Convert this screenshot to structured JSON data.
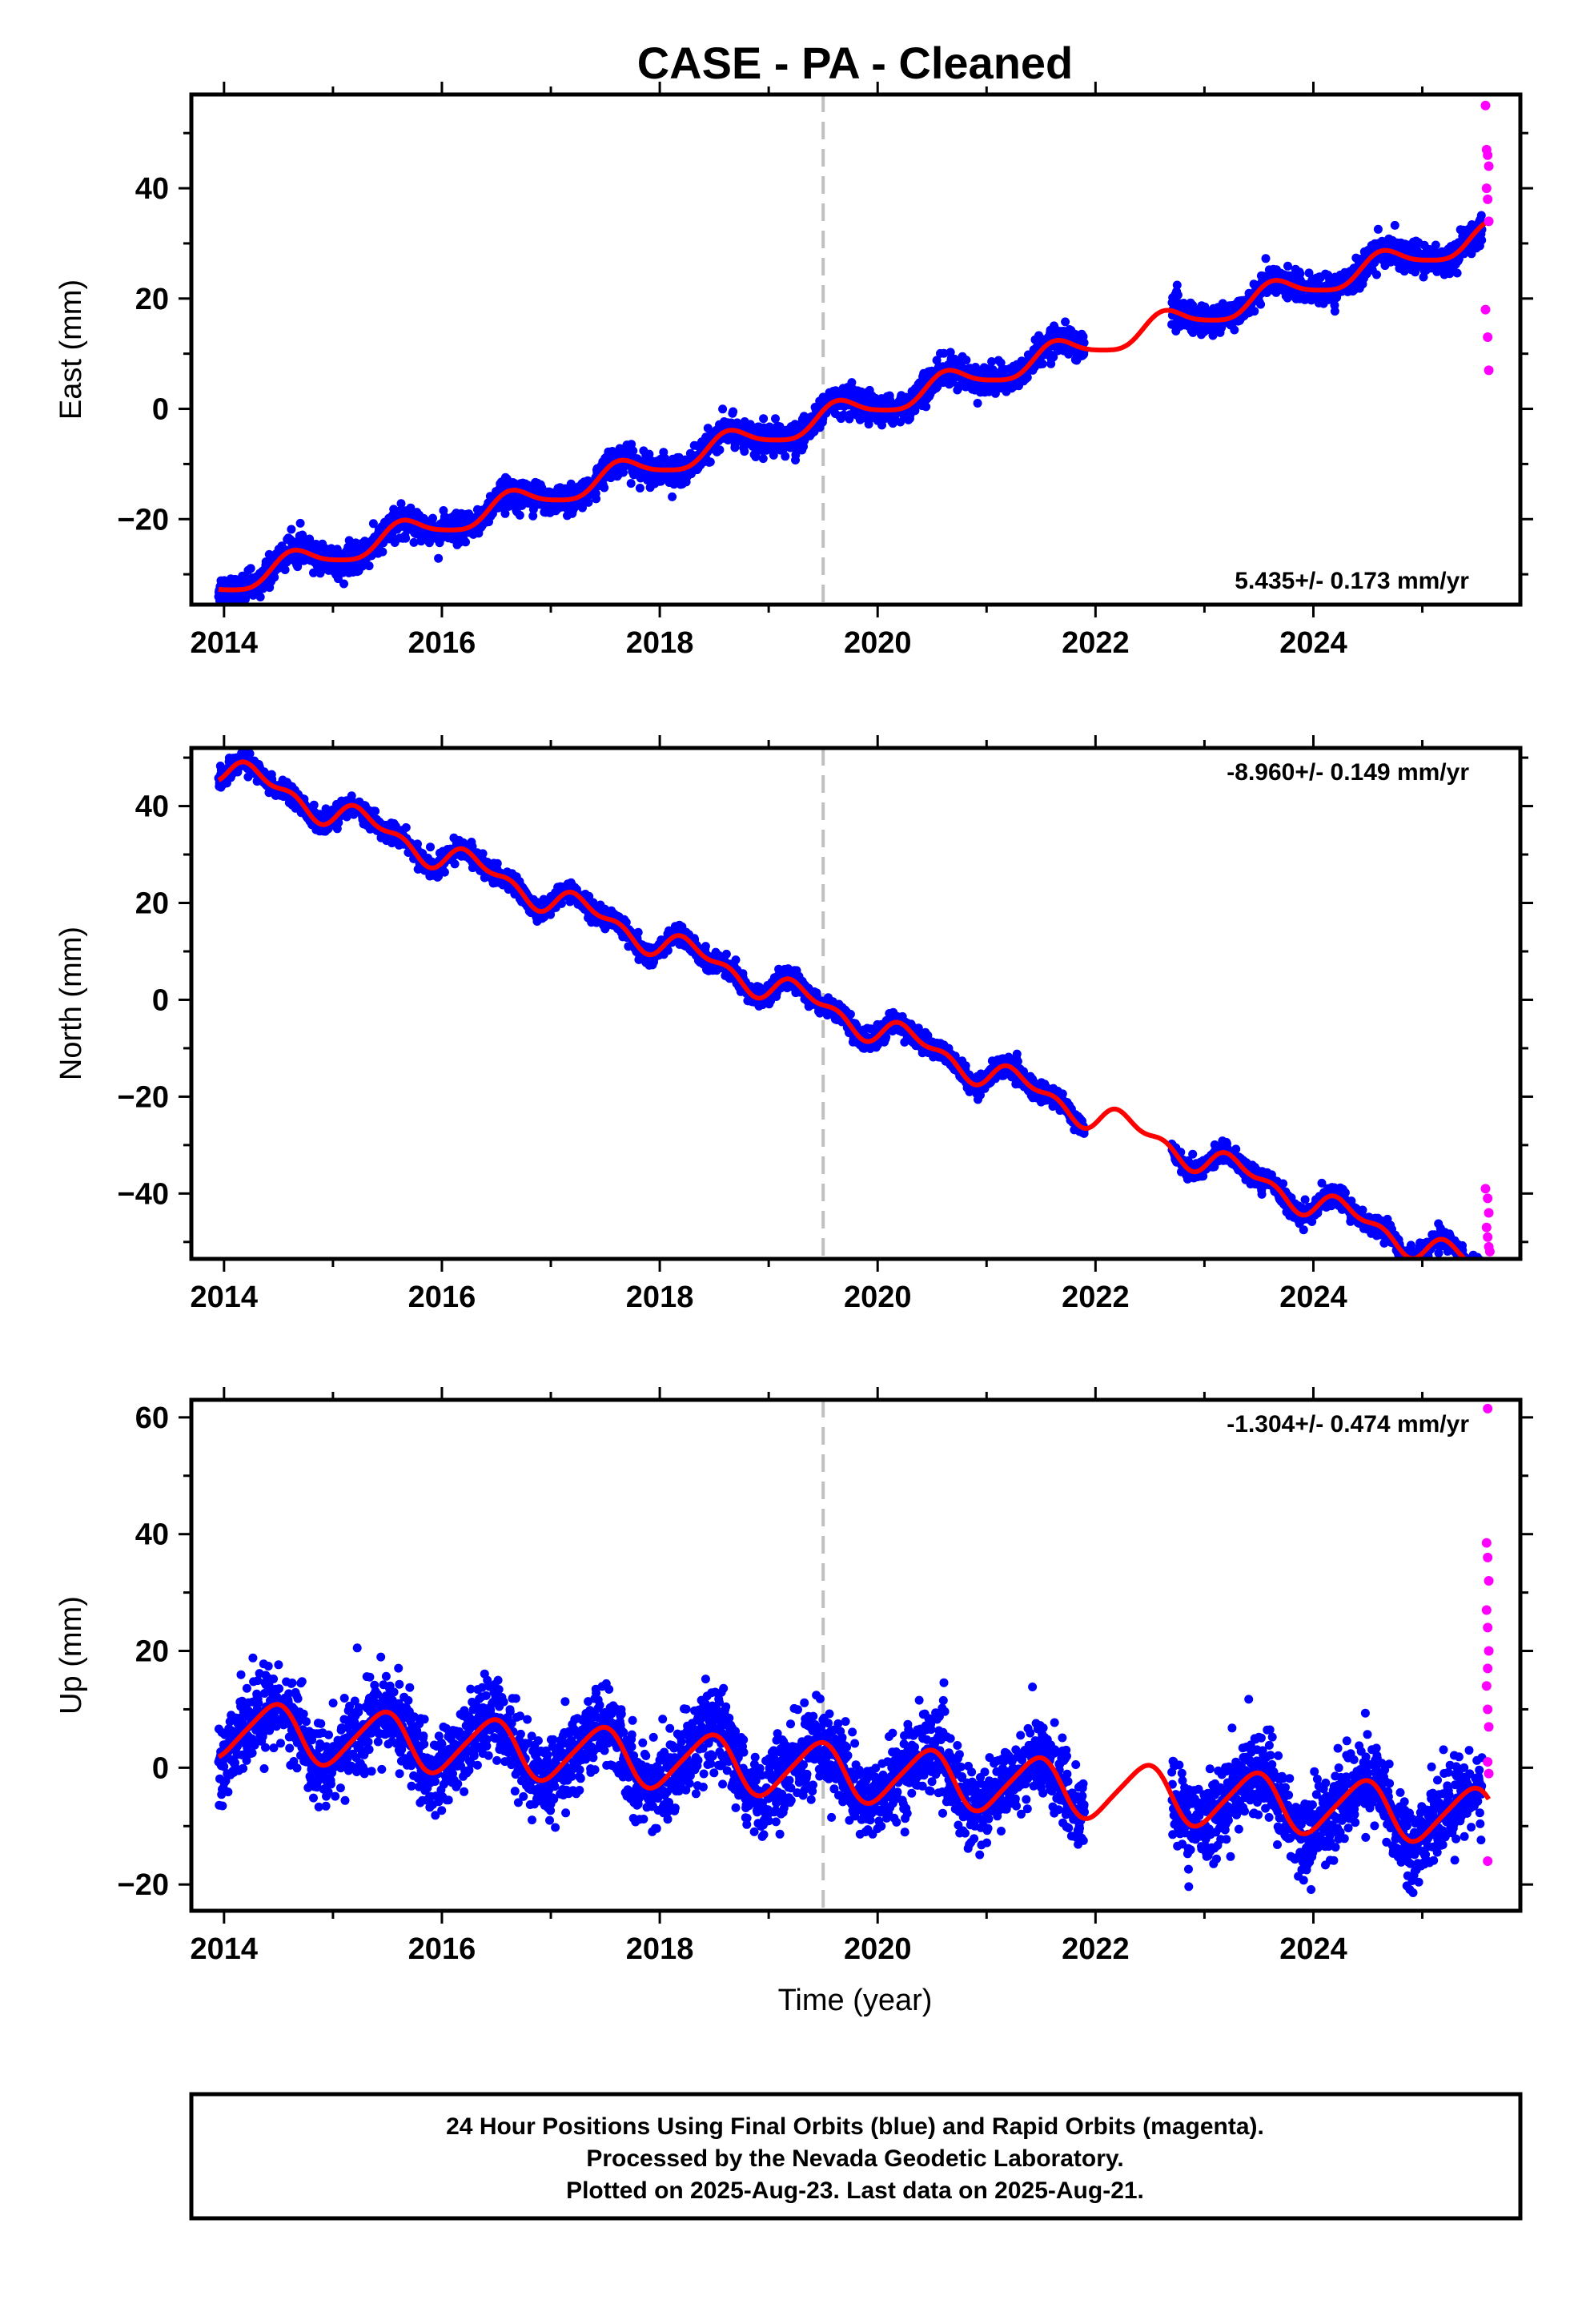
{
  "title": "CASE  - PA - Cleaned",
  "xlabel": "Time (year)",
  "footer": {
    "line1": "24 Hour Positions Using Final Orbits (blue) and Rapid Orbits (magenta).",
    "line2": "Processed by the Nevada Geodetic Laboratory.",
    "line3": "Plotted on 2025-Aug-23. Last data on 2025-Aug-21."
  },
  "colors": {
    "final": "#0000ff",
    "rapid": "#ff00ff",
    "model": "#ff0000",
    "event": "#c0c0c0"
  },
  "chart_data": [
    {
      "type": "scatter",
      "component": "east",
      "ylabel": "East (mm)",
      "xlim": [
        2013.7,
        2025.9
      ],
      "ylim": [
        -35.5,
        57
      ],
      "xticks": [
        2014,
        2016,
        2018,
        2020,
        2022,
        2024
      ],
      "yticks": [
        -20,
        0,
        20,
        40
      ],
      "rate_label": "5.435+/- 0.173 mm/yr",
      "rate_position": "bottom-right",
      "event_line_x": 2019.5,
      "data_range": [
        2013.95,
        2025.55
      ],
      "gap": [
        2021.9,
        2022.7
      ],
      "model": {
        "rate": 5.435,
        "intercept": -1.8,
        "sin1": -1.8,
        "cos1": -1.3,
        "sin2": 0.4,
        "cos2": 0.2
      },
      "final_points_scatter_mm": 1.3,
      "rapid_points": [
        {
          "x": 2025.58,
          "y": 55
        },
        {
          "x": 2025.59,
          "y": 47
        },
        {
          "x": 2025.6,
          "y": 46
        },
        {
          "x": 2025.61,
          "y": 44
        },
        {
          "x": 2025.59,
          "y": 40
        },
        {
          "x": 2025.6,
          "y": 38
        },
        {
          "x": 2025.61,
          "y": 34
        },
        {
          "x": 2025.58,
          "y": 18
        },
        {
          "x": 2025.6,
          "y": 13
        },
        {
          "x": 2025.61,
          "y": 7
        }
      ]
    },
    {
      "type": "scatter",
      "component": "north",
      "ylabel": "North (mm)",
      "xlim": [
        2013.7,
        2025.9
      ],
      "ylim": [
        -53.5,
        52
      ],
      "xticks": [
        2014,
        2016,
        2018,
        2020,
        2022,
        2024
      ],
      "yticks": [
        -40,
        -20,
        0,
        20,
        40
      ],
      "rate_label": "-8.960+/- 0.149 mm/yr",
      "rate_position": "top-right",
      "event_line_x": 2019.5,
      "data_range": [
        2013.95,
        2025.55
      ],
      "gap": [
        2021.9,
        2022.7
      ],
      "model": {
        "rate": -8.96,
        "intercept": -1.5,
        "sin1": 2.2,
        "cos1": -1.0,
        "sin2": 1.3,
        "cos2": -0.6
      },
      "final_points_scatter_mm": 1.0,
      "rapid_points": [
        {
          "x": 2025.58,
          "y": -39
        },
        {
          "x": 2025.6,
          "y": -41
        },
        {
          "x": 2025.61,
          "y": -44
        },
        {
          "x": 2025.59,
          "y": -47
        },
        {
          "x": 2025.6,
          "y": -49
        },
        {
          "x": 2025.61,
          "y": -51
        },
        {
          "x": 2025.62,
          "y": -52
        }
      ]
    },
    {
      "type": "scatter",
      "component": "up",
      "ylabel": "Up (mm)",
      "xlim": [
        2013.7,
        2025.9
      ],
      "ylim": [
        -24.5,
        63
      ],
      "xticks": [
        2014,
        2016,
        2018,
        2020,
        2022,
        2024
      ],
      "yticks": [
        -20,
        0,
        20,
        40,
        60
      ],
      "rate_label": "-1.304+/- 0.474 mm/yr",
      "rate_position": "top-right",
      "event_line_x": 2019.5,
      "data_range": [
        2013.95,
        2025.55
      ],
      "gap": [
        2021.9,
        2022.7
      ],
      "model": {
        "rate": -1.304,
        "intercept": -0.6,
        "sin1": 1.5,
        "cos1": -4.5,
        "sin2": 0.6,
        "cos2": 0.4
      },
      "final_points_scatter_mm": 3.5,
      "rapid_points": [
        {
          "x": 2025.6,
          "y": 61.5
        },
        {
          "x": 2025.59,
          "y": 38.5
        },
        {
          "x": 2025.6,
          "y": 36
        },
        {
          "x": 2025.61,
          "y": 32
        },
        {
          "x": 2025.59,
          "y": 27
        },
        {
          "x": 2025.6,
          "y": 24
        },
        {
          "x": 2025.61,
          "y": 20
        },
        {
          "x": 2025.6,
          "y": 17
        },
        {
          "x": 2025.59,
          "y": 14
        },
        {
          "x": 2025.6,
          "y": 10
        },
        {
          "x": 2025.61,
          "y": 7
        },
        {
          "x": 2025.6,
          "y": 1
        },
        {
          "x": 2025.61,
          "y": -1
        },
        {
          "x": 2025.6,
          "y": -16
        }
      ]
    }
  ]
}
